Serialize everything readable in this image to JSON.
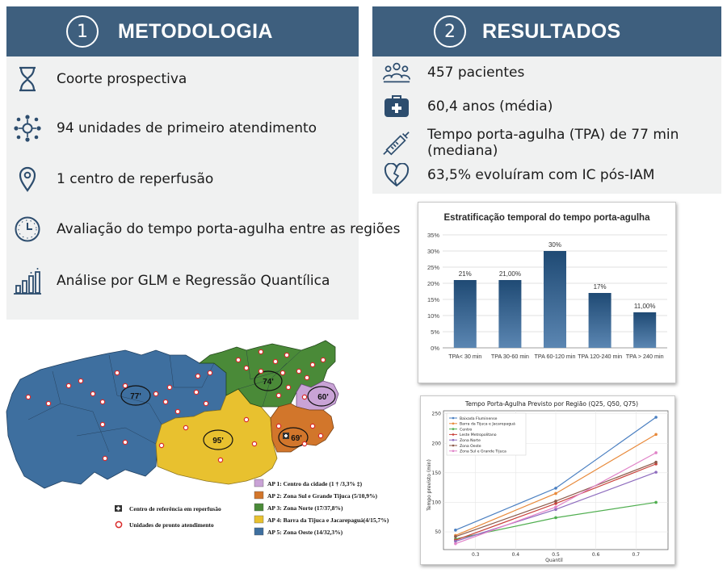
{
  "metodologia": {
    "number": "1",
    "title": "METODOLOGIA",
    "items": [
      {
        "icon": "hourglass-icon",
        "label": "Coorte prospectiva"
      },
      {
        "icon": "network-icon",
        "label": "94 unidades de primeiro atendimento"
      },
      {
        "icon": "location-pin-icon",
        "label": "1 centro de reperfusão"
      },
      {
        "icon": "clock-icon",
        "label": "Avaliação do tempo porta-agulha entre as regiões"
      },
      {
        "icon": "bar-chart-icon",
        "label": "Análise por GLM e Regressão Quantílica"
      }
    ]
  },
  "resultados": {
    "number": "2",
    "title": "RESULTADOS",
    "items": [
      {
        "icon": "people-icon",
        "label": "457 pacientes"
      },
      {
        "icon": "medical-kit-icon",
        "label": "60,4 anos (média)"
      },
      {
        "icon": "syringe-icon",
        "label": "Tempo porta-agulha (TPA) de 77 min (mediana)"
      },
      {
        "icon": "broken-heart-icon",
        "label": "63,5% evoluíram com IC pós-IAM"
      }
    ]
  },
  "map": {
    "regions": [
      {
        "name": "AP 5",
        "label": "77'",
        "color": "#3e6f9f"
      },
      {
        "name": "AP 4",
        "label": "95'",
        "color": "#e8c12f"
      },
      {
        "name": "AP 3",
        "label": "74'",
        "color": "#4a8a38"
      },
      {
        "name": "AP 1",
        "label": "60'",
        "color": "#c9a3d6"
      },
      {
        "name": "AP 2",
        "label": "69'",
        "color": "#d2762b"
      }
    ],
    "legend_left": [
      {
        "icon": "hospital-icon",
        "label": "Centro de referência em reperfusão"
      },
      {
        "icon": "emergency-unit-icon",
        "label": "Unidades de pronto atendimento"
      }
    ],
    "legend_right": [
      {
        "label": "AP 1: Centro da cidade (1 † /3,3% ‡)",
        "color": "#c9a3d6"
      },
      {
        "label": "AP 2: Zona Sul e Grande Tijuca (5/10,9%)",
        "color": "#d2762b"
      },
      {
        "label": "AP 3: Zona Norte (17/37,8%)",
        "color": "#4a8a38"
      },
      {
        "label": "AP 4: Barra da Tijuca e Jacarepaguá(4/15,7%)",
        "color": "#e8c12f"
      },
      {
        "label": "AP 5: Zona Oeste (14/32,3%)",
        "color": "#3e6f9f"
      }
    ]
  },
  "chart_data": [
    {
      "type": "bar",
      "title": "Estratificação temporal do tempo porta-agulha",
      "categories": [
        "TPA< 30 min",
        "TPA 30-60 min",
        "TPA 60-120 min",
        "TPA 120-240 min",
        "TPA > 240 min"
      ],
      "values": [
        21,
        21,
        30,
        17,
        11
      ],
      "data_labels": [
        "21%",
        "21,00%",
        "30%",
        "17%",
        "11,00%"
      ],
      "ylim": [
        0,
        35
      ],
      "yticks": [
        "0%",
        "5%",
        "10%",
        "15%",
        "20%",
        "25%",
        "30%",
        "35%"
      ],
      "grid": true,
      "bar_color": "#25507a"
    },
    {
      "type": "line",
      "title": "Tempo Porta-Agulha Previsto por Região (Q25, Q50, Q75)",
      "xlabel": "Quantil",
      "ylabel": "Tempo previsto (min)",
      "x": [
        0.25,
        0.5,
        0.75
      ],
      "xlim": [
        0.22,
        0.78
      ],
      "ylim": [
        20,
        255
      ],
      "xticks": [
        "0.3",
        "0.4",
        "0.5",
        "0.6",
        "0.7"
      ],
      "yticks": [
        "50",
        "100",
        "150",
        "200",
        "250"
      ],
      "legend": "top-left",
      "grid": true,
      "series": [
        {
          "name": "Baixada Fluminense",
          "values": [
            53,
            124,
            244
          ],
          "color": "#4a7fc1"
        },
        {
          "name": "Barra da Tijuca e Jacarepaguá",
          "values": [
            44,
            115,
            215
          ],
          "color": "#e8893a"
        },
        {
          "name": "Centro",
          "values": [
            38,
            74,
            100
          ],
          "color": "#4fae4f"
        },
        {
          "name": "Leste Metropolitano",
          "values": [
            36,
            98,
            165
          ],
          "color": "#c9413a"
        },
        {
          "name": "Zona Norte",
          "values": [
            34,
            88,
            151
          ],
          "color": "#8e6cbe"
        },
        {
          "name": "Zona Oeste",
          "values": [
            42,
            102,
            168
          ],
          "color": "#8c5a4a"
        },
        {
          "name": "Zona Sul e Grande Tijuca",
          "values": [
            30,
            92,
            184
          ],
          "color": "#e083c8"
        }
      ]
    }
  ]
}
